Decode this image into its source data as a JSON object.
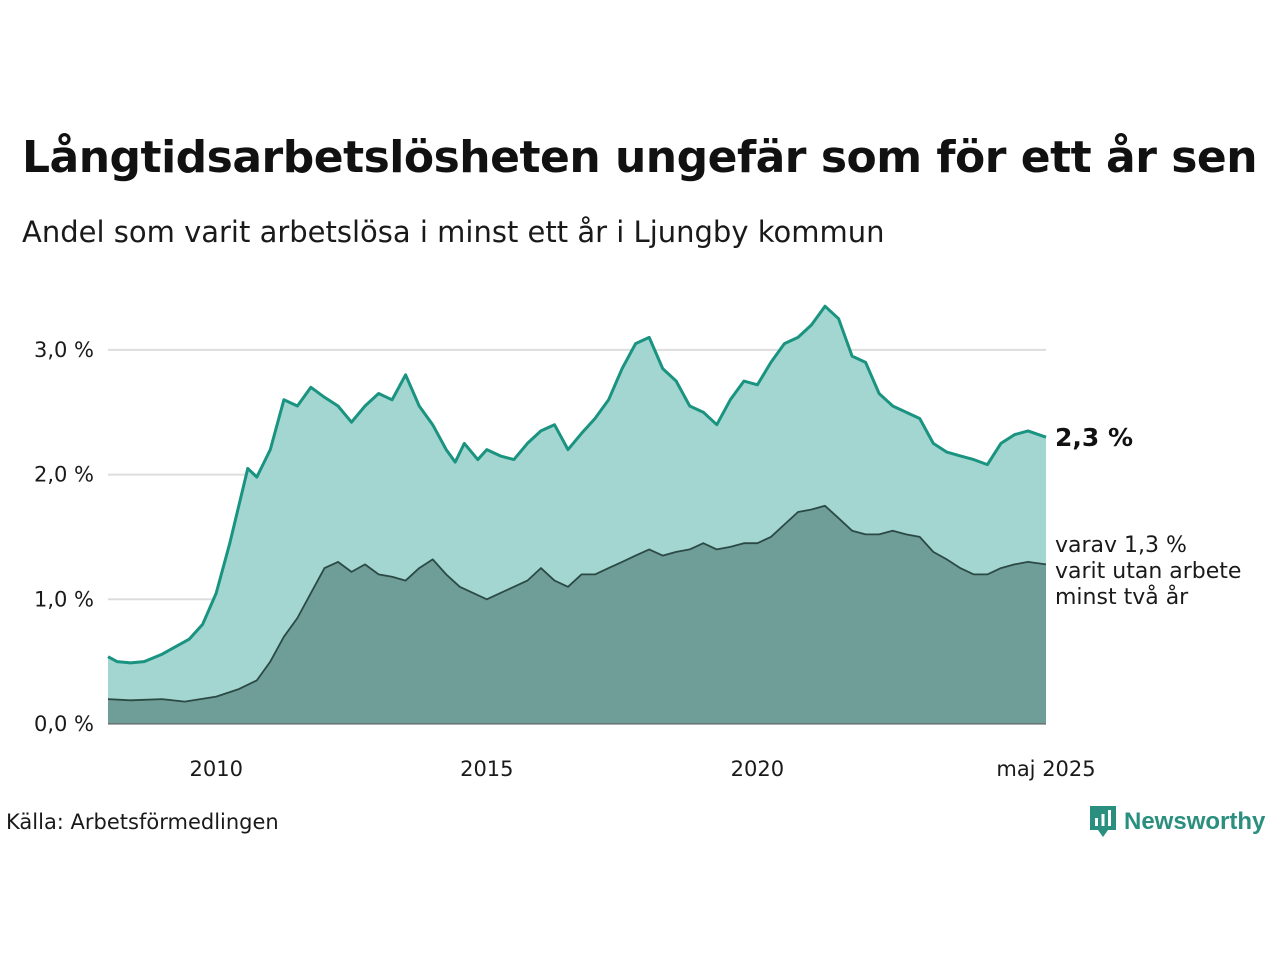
{
  "title": "Långtidsarbetslösheten ungefär som för ett år sen",
  "subtitle": "Andel som varit arbetslösa i minst ett år i Ljungby kommun",
  "source": "Källa: Arbetsförmedlingen",
  "brand": {
    "name": "Newsworthy",
    "color": "#2a8f7e"
  },
  "colors": {
    "long_area": "#a3d6d0",
    "long_line": "#1a9380",
    "vlong_area": "#6f9d97",
    "vlong_line": "#2b4a45",
    "grid": "#dddddd"
  },
  "chart_data": {
    "type": "area",
    "x_start": "2008-01",
    "x_end": "2025-05",
    "x_ticks": [
      {
        "label": "2010",
        "date": "2010-01"
      },
      {
        "label": "2015",
        "date": "2015-01"
      },
      {
        "label": "2020",
        "date": "2020-01"
      },
      {
        "label": "maj 2025",
        "date": "2025-05"
      }
    ],
    "y_ticks": [
      {
        "label": "0,0 %",
        "value": 0
      },
      {
        "label": "1,0 %",
        "value": 1
      },
      {
        "label": "2,0 %",
        "value": 2
      },
      {
        "label": "3,0 %",
        "value": 3
      }
    ],
    "ylim": [
      0,
      3.4
    ],
    "grid": true,
    "series": [
      {
        "key": "long",
        "end_label": "2,3 %",
        "points": [
          [
            "2008-01",
            0.54
          ],
          [
            "2008-03",
            0.5
          ],
          [
            "2008-06",
            0.49
          ],
          [
            "2008-09",
            0.5
          ],
          [
            "2009-01",
            0.56
          ],
          [
            "2009-04",
            0.62
          ],
          [
            "2009-07",
            0.68
          ],
          [
            "2009-10",
            0.8
          ],
          [
            "2010-01",
            1.05
          ],
          [
            "2010-04",
            1.45
          ],
          [
            "2010-06",
            1.75
          ],
          [
            "2010-08",
            2.05
          ],
          [
            "2010-10",
            1.98
          ],
          [
            "2011-01",
            2.2
          ],
          [
            "2011-04",
            2.6
          ],
          [
            "2011-07",
            2.55
          ],
          [
            "2011-10",
            2.7
          ],
          [
            "2012-01",
            2.62
          ],
          [
            "2012-04",
            2.55
          ],
          [
            "2012-07",
            2.42
          ],
          [
            "2012-10",
            2.55
          ],
          [
            "2013-01",
            2.65
          ],
          [
            "2013-04",
            2.6
          ],
          [
            "2013-07",
            2.8
          ],
          [
            "2013-10",
            2.55
          ],
          [
            "2014-01",
            2.4
          ],
          [
            "2014-04",
            2.2
          ],
          [
            "2014-06",
            2.1
          ],
          [
            "2014-08",
            2.25
          ],
          [
            "2014-11",
            2.12
          ],
          [
            "2015-01",
            2.2
          ],
          [
            "2015-04",
            2.15
          ],
          [
            "2015-07",
            2.12
          ],
          [
            "2015-10",
            2.25
          ],
          [
            "2016-01",
            2.35
          ],
          [
            "2016-04",
            2.4
          ],
          [
            "2016-07",
            2.2
          ],
          [
            "2016-10",
            2.33
          ],
          [
            "2017-01",
            2.45
          ],
          [
            "2017-04",
            2.6
          ],
          [
            "2017-07",
            2.85
          ],
          [
            "2017-10",
            3.05
          ],
          [
            "2018-01",
            3.1
          ],
          [
            "2018-04",
            2.85
          ],
          [
            "2018-07",
            2.75
          ],
          [
            "2018-10",
            2.55
          ],
          [
            "2019-01",
            2.5
          ],
          [
            "2019-04",
            2.4
          ],
          [
            "2019-07",
            2.6
          ],
          [
            "2019-10",
            2.75
          ],
          [
            "2020-01",
            2.72
          ],
          [
            "2020-04",
            2.9
          ],
          [
            "2020-07",
            3.05
          ],
          [
            "2020-10",
            3.1
          ],
          [
            "2021-01",
            3.2
          ],
          [
            "2021-04",
            3.35
          ],
          [
            "2021-07",
            3.25
          ],
          [
            "2021-10",
            2.95
          ],
          [
            "2022-01",
            2.9
          ],
          [
            "2022-04",
            2.65
          ],
          [
            "2022-07",
            2.55
          ],
          [
            "2022-10",
            2.5
          ],
          [
            "2023-01",
            2.45
          ],
          [
            "2023-04",
            2.25
          ],
          [
            "2023-07",
            2.18
          ],
          [
            "2023-10",
            2.15
          ],
          [
            "2024-01",
            2.12
          ],
          [
            "2024-04",
            2.08
          ],
          [
            "2024-07",
            2.25
          ],
          [
            "2024-10",
            2.32
          ],
          [
            "2025-01",
            2.35
          ],
          [
            "2025-05",
            2.3
          ]
        ]
      },
      {
        "key": "very_long",
        "end_label": [
          "varav 1,3 %",
          "varit utan arbete",
          "minst två år"
        ],
        "points": [
          [
            "2008-01",
            0.2
          ],
          [
            "2008-06",
            0.19
          ],
          [
            "2009-01",
            0.2
          ],
          [
            "2009-06",
            0.18
          ],
          [
            "2010-01",
            0.22
          ],
          [
            "2010-06",
            0.28
          ],
          [
            "2010-10",
            0.35
          ],
          [
            "2011-01",
            0.5
          ],
          [
            "2011-04",
            0.7
          ],
          [
            "2011-07",
            0.85
          ],
          [
            "2011-10",
            1.05
          ],
          [
            "2012-01",
            1.25
          ],
          [
            "2012-04",
            1.3
          ],
          [
            "2012-07",
            1.22
          ],
          [
            "2012-10",
            1.28
          ],
          [
            "2013-01",
            1.2
          ],
          [
            "2013-04",
            1.18
          ],
          [
            "2013-07",
            1.15
          ],
          [
            "2013-10",
            1.25
          ],
          [
            "2014-01",
            1.32
          ],
          [
            "2014-04",
            1.2
          ],
          [
            "2014-07",
            1.1
          ],
          [
            "2014-10",
            1.05
          ],
          [
            "2015-01",
            1.0
          ],
          [
            "2015-04",
            1.05
          ],
          [
            "2015-07",
            1.1
          ],
          [
            "2015-10",
            1.15
          ],
          [
            "2016-01",
            1.25
          ],
          [
            "2016-04",
            1.15
          ],
          [
            "2016-07",
            1.1
          ],
          [
            "2016-10",
            1.2
          ],
          [
            "2017-01",
            1.2
          ],
          [
            "2017-04",
            1.25
          ],
          [
            "2017-07",
            1.3
          ],
          [
            "2017-10",
            1.35
          ],
          [
            "2018-01",
            1.4
          ],
          [
            "2018-04",
            1.35
          ],
          [
            "2018-07",
            1.38
          ],
          [
            "2018-10",
            1.4
          ],
          [
            "2019-01",
            1.45
          ],
          [
            "2019-04",
            1.4
          ],
          [
            "2019-07",
            1.42
          ],
          [
            "2019-10",
            1.45
          ],
          [
            "2020-01",
            1.45
          ],
          [
            "2020-04",
            1.5
          ],
          [
            "2020-07",
            1.6
          ],
          [
            "2020-10",
            1.7
          ],
          [
            "2021-01",
            1.72
          ],
          [
            "2021-04",
            1.75
          ],
          [
            "2021-07",
            1.65
          ],
          [
            "2021-10",
            1.55
          ],
          [
            "2022-01",
            1.52
          ],
          [
            "2022-04",
            1.52
          ],
          [
            "2022-07",
            1.55
          ],
          [
            "2022-10",
            1.52
          ],
          [
            "2023-01",
            1.5
          ],
          [
            "2023-04",
            1.38
          ],
          [
            "2023-07",
            1.32
          ],
          [
            "2023-10",
            1.25
          ],
          [
            "2024-01",
            1.2
          ],
          [
            "2024-04",
            1.2
          ],
          [
            "2024-07",
            1.25
          ],
          [
            "2024-10",
            1.28
          ],
          [
            "2025-01",
            1.3
          ],
          [
            "2025-05",
            1.28
          ]
        ]
      }
    ]
  }
}
